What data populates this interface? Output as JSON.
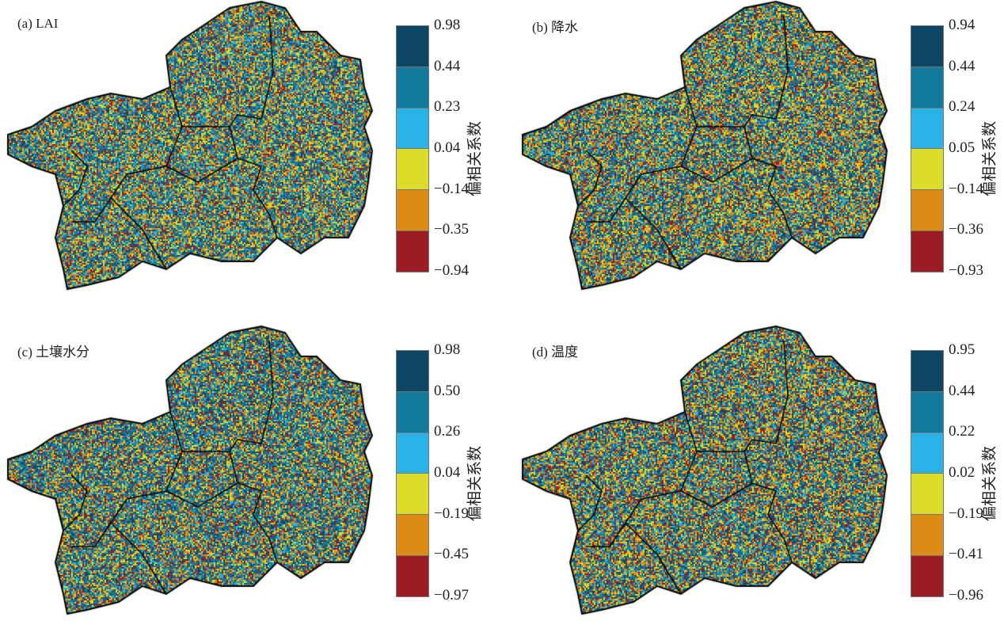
{
  "colors": [
    "#0d4565",
    "#127a9c",
    "#29b3e6",
    "#dcdc2a",
    "#dc8c14",
    "#9b1c22"
  ],
  "colorbar_label": "偏相关系数",
  "panels": [
    {
      "title": "(a) LAI",
      "ticks": [
        "0.98",
        "0.44",
        "0.23",
        "0.04",
        "−0.14",
        "−0.35",
        "−0.94"
      ],
      "weights": [
        0.12,
        0.3,
        0.12,
        0.16,
        0.18,
        0.12
      ]
    },
    {
      "title": "(b) 降水",
      "ticks": [
        "0.94",
        "0.44",
        "0.24",
        "0.05",
        "−0.14",
        "−0.36",
        "−0.93"
      ],
      "weights": [
        0.14,
        0.28,
        0.1,
        0.16,
        0.2,
        0.12
      ]
    },
    {
      "title": "(c) 土壤水分",
      "ticks": [
        "0.98",
        "0.50",
        "0.26",
        "0.04",
        "−0.19",
        "−0.45",
        "−0.97"
      ],
      "weights": [
        0.15,
        0.32,
        0.1,
        0.14,
        0.17,
        0.12
      ]
    },
    {
      "title": "(d) 温度",
      "ticks": [
        "0.95",
        "0.44",
        "0.22",
        "0.02",
        "−0.19",
        "−0.41",
        "−0.96"
      ],
      "weights": [
        0.14,
        0.28,
        0.1,
        0.15,
        0.2,
        0.13
      ]
    }
  ]
}
